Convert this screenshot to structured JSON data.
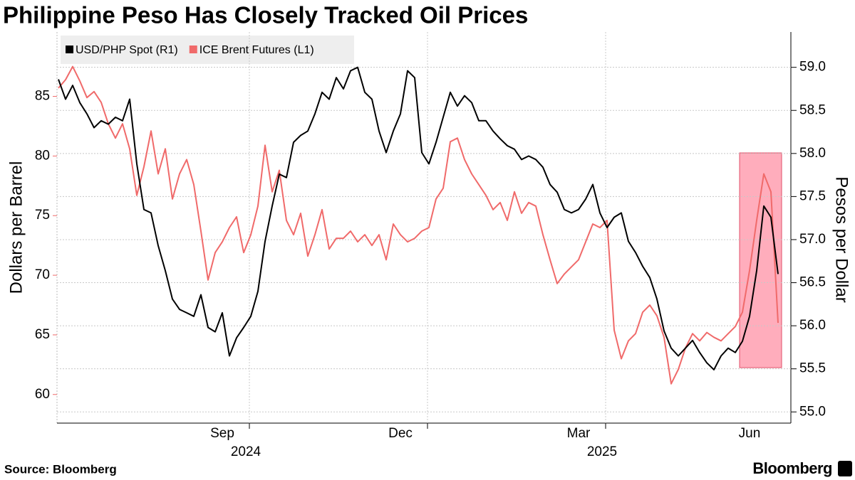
{
  "chart_data": {
    "type": "line",
    "title": "Philippine Peso Has Closely Tracked Oil Prices",
    "source": "Source: Bloomberg",
    "brand": "Bloomberg",
    "ylabel": "Dollars per Barrel",
    "y2label": "Pesos per Dollar",
    "x_group_labels": [
      "2024",
      "2025"
    ],
    "categories": [
      null,
      null,
      null,
      null,
      null,
      null,
      null,
      null,
      null,
      null,
      null,
      null,
      null,
      null,
      null,
      null,
      null,
      null,
      null,
      null,
      null,
      null,
      null,
      "Sep",
      null,
      null,
      null,
      null,
      null,
      null,
      null,
      null,
      null,
      null,
      null,
      null,
      null,
      null,
      null,
      null,
      null,
      null,
      null,
      null,
      null,
      null,
      null,
      null,
      "Dec",
      null,
      null,
      null,
      null,
      null,
      null,
      null,
      null,
      null,
      null,
      null,
      null,
      null,
      null,
      null,
      null,
      null,
      null,
      null,
      null,
      null,
      null,
      null,
      null,
      "Mar",
      null,
      null,
      null,
      null,
      null,
      null,
      null,
      null,
      null,
      null,
      null,
      null,
      null,
      null,
      null,
      null,
      null,
      null,
      null,
      null,
      null,
      null,
      null,
      "Jun",
      null,
      null,
      null,
      null
    ],
    "series": [
      {
        "name": "USD/PHP Spot (R1)",
        "color": "#000000",
        "axis": "y2",
        "values": [
          58.86,
          58.63,
          58.79,
          58.59,
          58.46,
          58.3,
          58.38,
          58.34,
          58.42,
          58.38,
          58.63,
          57.88,
          57.35,
          57.31,
          56.93,
          56.64,
          56.31,
          56.19,
          56.15,
          56.11,
          56.36,
          55.98,
          55.93,
          56.15,
          55.65,
          55.86,
          55.98,
          56.11,
          56.4,
          56.98,
          57.39,
          57.76,
          57.72,
          58.13,
          58.21,
          58.26,
          58.46,
          58.71,
          58.63,
          58.88,
          58.75,
          58.96,
          59.0,
          58.71,
          58.63,
          58.26,
          58.01,
          58.26,
          58.46,
          58.96,
          58.88,
          58.01,
          57.88,
          58.13,
          58.42,
          58.71,
          58.55,
          58.67,
          58.59,
          58.38,
          58.38,
          58.26,
          58.17,
          58.09,
          58.05,
          57.93,
          57.97,
          57.93,
          57.84,
          57.64,
          57.55,
          57.35,
          57.31,
          57.35,
          57.47,
          57.64,
          57.31,
          57.14,
          57.26,
          57.31,
          56.98,
          56.85,
          56.69,
          56.56,
          56.31,
          55.94,
          55.74,
          55.65,
          55.74,
          55.83,
          55.69,
          55.57,
          55.49,
          55.65,
          55.74,
          55.69,
          55.82,
          56.11,
          56.64,
          57.39,
          57.26,
          56.6
        ]
      },
      {
        "name": "ICE Brent Futures (L1)",
        "color": "#f06a6a",
        "axis": "y",
        "values": [
          85.7,
          86.4,
          87.5,
          86.3,
          84.9,
          85.4,
          84.5,
          82.7,
          81.5,
          82.7,
          80.6,
          76.7,
          79.1,
          82.1,
          78.5,
          80.6,
          76.4,
          78.5,
          79.7,
          77.6,
          73.7,
          69.6,
          71.9,
          72.8,
          74.0,
          74.9,
          71.9,
          73.4,
          75.8,
          80.9,
          77.0,
          78.8,
          74.6,
          73.4,
          75.2,
          71.6,
          73.4,
          75.5,
          72.2,
          73.1,
          73.1,
          73.7,
          72.8,
          73.4,
          72.5,
          73.4,
          71.3,
          74.3,
          73.4,
          72.8,
          73.1,
          73.7,
          74.0,
          76.4,
          77.3,
          81.2,
          81.5,
          79.7,
          78.5,
          77.6,
          76.7,
          75.5,
          76.1,
          74.6,
          77.0,
          75.2,
          76.1,
          75.8,
          73.4,
          71.3,
          69.3,
          70.1,
          70.7,
          71.3,
          72.8,
          74.3,
          74.0,
          74.6,
          65.4,
          63.0,
          64.5,
          65.1,
          66.9,
          67.5,
          66.6,
          64.8,
          60.9,
          62.1,
          63.9,
          65.1,
          64.5,
          65.2,
          64.8,
          64.5,
          65.1,
          65.7,
          66.9,
          70.4,
          74.6,
          78.5,
          77.0,
          66.0
        ]
      }
    ],
    "ylim": [
      57.6,
      90.4
    ],
    "yticks": [
      60,
      65,
      70,
      75,
      80,
      85
    ],
    "y2lim": [
      54.87,
      59.41
    ],
    "y2ticks": [
      {
        "value": 55,
        "label": "55.0"
      },
      55.5,
      {
        "value": 56,
        "label": "56.0"
      },
      56.5,
      {
        "value": 57,
        "label": "57.0"
      },
      57.5,
      {
        "value": 58,
        "label": "58.0"
      },
      58.5,
      {
        "value": 59,
        "label": "59.0"
      }
    ],
    "grid": true,
    "legend": "top-left"
  }
}
